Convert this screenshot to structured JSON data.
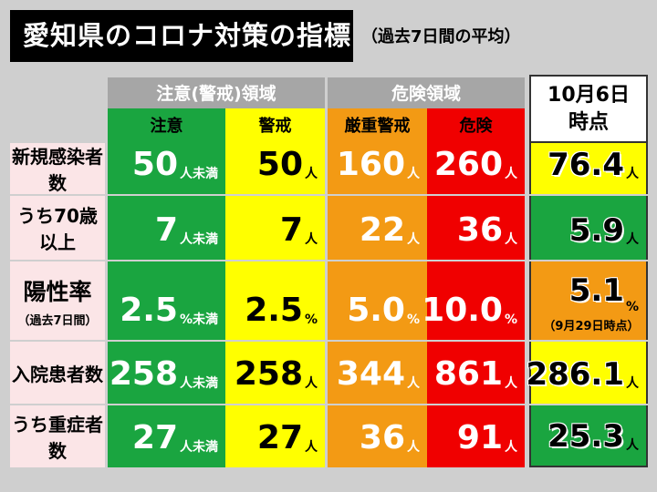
{
  "title": "愛知県のコロナ対策の指標",
  "subtitle": "（過去7日間の平均）",
  "headers": {
    "caution_zone": "注意(警戒)領域",
    "danger_zone": "危険領域",
    "now": [
      "10月6日",
      "時点"
    ],
    "levels": [
      "注意",
      "警戒",
      "厳重警戒",
      "危険"
    ]
  },
  "rows": [
    {
      "label": "新規感染者数",
      "values": [
        {
          "n": "50",
          "u": "人未満"
        },
        {
          "n": "50",
          "u": "人"
        },
        {
          "n": "160",
          "u": "人"
        },
        {
          "n": "260",
          "u": "人"
        }
      ],
      "now": {
        "n": "76.4",
        "u": "人"
      },
      "now_color": "#ffff00"
    },
    {
      "label": "うち70歳以上",
      "values": [
        {
          "n": "7",
          "u": "人未満"
        },
        {
          "n": "7",
          "u": "人"
        },
        {
          "n": "22",
          "u": "人"
        },
        {
          "n": "36",
          "u": "人"
        }
      ],
      "now": {
        "n": "5.9",
        "u": "人"
      },
      "now_color": "#1aa540"
    },
    {
      "label": "陽性率",
      "label_sub": "（過去7日間）",
      "values": [
        {
          "n": "2.5",
          "u": "%未満"
        },
        {
          "n": "2.5",
          "u": "%"
        },
        {
          "n": "5.0",
          "u": "%"
        },
        {
          "n": "10.0",
          "u": "%"
        }
      ],
      "now": {
        "n": "5.1",
        "u": "%"
      },
      "now_note": "（9月29日時点）",
      "now_color": "#f39a14"
    },
    {
      "label": "入院患者数",
      "values": [
        {
          "n": "258",
          "u": "人未満"
        },
        {
          "n": "258",
          "u": "人"
        },
        {
          "n": "344",
          "u": "人"
        },
        {
          "n": "861",
          "u": "人"
        }
      ],
      "now": {
        "n": "286.1",
        "u": "人"
      },
      "now_color": "#ffff00"
    },
    {
      "label": "うち重症者数",
      "values": [
        {
          "n": "27",
          "u": "人未満"
        },
        {
          "n": "27",
          "u": "人"
        },
        {
          "n": "36",
          "u": "人"
        },
        {
          "n": "91",
          "u": "人"
        }
      ],
      "now": {
        "n": "25.3",
        "u": "人"
      },
      "now_color": "#1aa540"
    }
  ]
}
